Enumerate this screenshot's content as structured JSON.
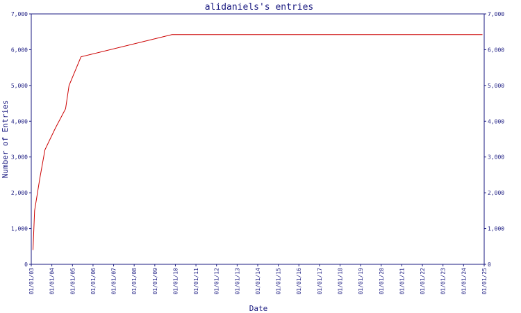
{
  "chart_data": {
    "type": "line",
    "title": "alidaniels's entries",
    "xlabel": "Date",
    "ylabel": "Number of Entries",
    "x_ticks": [
      "01/01/03",
      "01/01/04",
      "01/01/05",
      "01/01/06",
      "01/01/07",
      "01/01/08",
      "01/01/09",
      "01/01/10",
      "01/01/11",
      "01/01/12",
      "01/01/13",
      "01/01/14",
      "01/01/15",
      "01/01/16",
      "01/01/17",
      "01/01/18",
      "01/01/19",
      "01/01/20",
      "01/01/21",
      "01/01/22",
      "01/01/23",
      "01/01/24",
      "01/01/25"
    ],
    "y_ticks": [
      "0",
      "1,000",
      "2,000",
      "3,000",
      "4,000",
      "5,000",
      "6,000",
      "7,000"
    ],
    "ylim": [
      0,
      7000
    ],
    "grid": false,
    "series": [
      {
        "color": "#cc0000",
        "points": [
          [
            "2003-02-01",
            400
          ],
          [
            "2003-03-01",
            1500
          ],
          [
            "2003-06-01",
            2400
          ],
          [
            "2003-09-01",
            3200
          ],
          [
            "2004-03-01",
            3800
          ],
          [
            "2004-09-01",
            4350
          ],
          [
            "2004-11-01",
            5000
          ],
          [
            "2005-06-01",
            5800
          ],
          [
            "2009-11-01",
            6420
          ],
          [
            "2024-12-01",
            6420
          ]
        ]
      }
    ]
  }
}
